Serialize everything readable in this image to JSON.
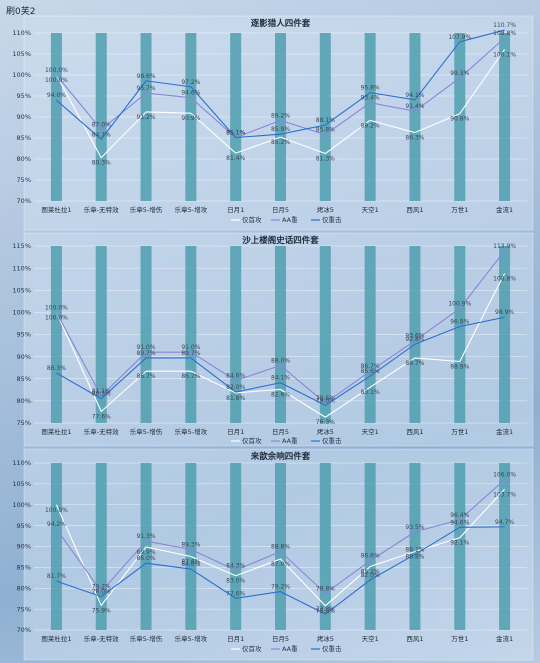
{
  "page_title": "刷0芙2",
  "chart_data": [
    {
      "type": "line",
      "title": "逐影猎人四件套",
      "categories": [
        "图莱杜拉1",
        "乐章-无特效",
        "乐章5-增伤",
        "乐章5-增攻",
        "日月1",
        "日月5",
        "烤冰5",
        "天空1",
        "西风1",
        "万世1",
        "金流1"
      ],
      "ylim": [
        70,
        110
      ],
      "yticks": [
        "70%",
        "75%",
        "80%",
        "85%",
        "90%",
        "95%",
        "100%",
        "105%",
        "110%"
      ],
      "grid": true,
      "legend_position": "bottom",
      "series": [
        {
          "name": "仅首攻",
          "color": "#ffffff",
          "values": [
            100.0,
            80.3,
            91.2,
            90.9,
            81.4,
            85.2,
            81.3,
            89.2,
            86.3,
            90.8,
            106.1
          ],
          "labels": [
            "100.0%",
            "80.3%",
            "91.2%",
            "90.9%",
            "81.4%",
            "85.2%",
            "81.3%",
            "89.2%",
            "86.3%",
            "90.8%",
            "106.1%"
          ]
        },
        {
          "name": "AA重",
          "color": "#8a86d8",
          "values": [
            100.0,
            87.0,
            95.7,
            94.6,
            85.1,
            89.2,
            85.8,
            93.4,
            91.4,
            99.3,
            108.8
          ],
          "labels": [
            "100.0%",
            "87.0%",
            "95.7%",
            "94.6%",
            "85.1%",
            "89.2%",
            "85.8%",
            "93.4%",
            "91.4%",
            "99.3%",
            "108.8%"
          ]
        },
        {
          "name": "仅重击",
          "color": "#2a6fd0",
          "values": [
            94.0,
            84.7,
            98.6,
            97.2,
            85.1,
            85.9,
            88.1,
            95.8,
            94.1,
            107.9,
            110.7
          ],
          "labels": [
            "94.0%",
            "84.7%",
            "98.6%",
            "97.2%",
            "85.1%",
            "85.9%",
            "88.1%",
            "95.8%",
            "94.1%",
            "107.9%",
            "110.7%"
          ]
        }
      ]
    },
    {
      "type": "line",
      "title": "沙上楼阁史话四件套",
      "categories": [
        "图莱杜拉1",
        "乐章-无特效",
        "乐章5-增伤",
        "乐章5-增攻",
        "日月1",
        "日月5",
        "烤冰5",
        "天空1",
        "西风1",
        "万世1",
        "金流1"
      ],
      "ylim": [
        75,
        115
      ],
      "yticks": [
        "75%",
        "80%",
        "85%",
        "90%",
        "95%",
        "100%",
        "105%",
        "110%",
        "115%"
      ],
      "grid": true,
      "legend_position": "bottom",
      "series": [
        {
          "name": "仅首攻",
          "color": "#ffffff",
          "values": [
            100.0,
            77.6,
            86.7,
            86.7,
            81.8,
            82.6,
            76.3,
            83.1,
            89.7,
            88.9,
            108.8
          ],
          "labels": [
            "100.0%",
            "77.6%",
            "86.7%",
            "86.7%",
            "81.8%",
            "82.6%",
            "76.3%",
            "83.1%",
            "89.7%",
            "88.9%",
            "108.8%"
          ]
        },
        {
          "name": "AA重",
          "color": "#8a86d8",
          "values": [
            100.0,
            81.1,
            91.0,
            91.0,
            84.6,
            88.0,
            79.5,
            86.7,
            93.6,
            100.9,
            113.9
          ],
          "labels": [
            "100.0%",
            "81.1%",
            "91.0%",
            "91.0%",
            "84.6%",
            "88.0%",
            "79.5%",
            "86.7%",
            "93.6%",
            "100.9%",
            "113.9%"
          ]
        },
        {
          "name": "仅重击",
          "color": "#2a6fd0",
          "values": [
            86.3,
            80.5,
            89.7,
            89.7,
            82.0,
            84.1,
            79.0,
            85.6,
            92.8,
            96.8,
            98.9
          ],
          "labels": [
            "86.3%",
            "80.5%",
            "89.7%",
            "89.7%",
            "82.0%",
            "84.1%",
            "79.0%",
            "85.6%",
            "92.8%",
            "96.8%",
            "98.9%"
          ]
        }
      ]
    },
    {
      "type": "line",
      "title": "来歆余响四件套",
      "categories": [
        "图莱杜拉1",
        "乐章-无特效",
        "乐章5-增伤",
        "乐章5-增攻",
        "日月1",
        "日月5",
        "烤冰5",
        "天空1",
        "西风1",
        "万世1",
        "金流1"
      ],
      "ylim": [
        70,
        110
      ],
      "yticks": [
        "70%",
        "75%",
        "80%",
        "85%",
        "90%",
        "95%",
        "100%",
        "105%",
        "110%"
      ],
      "grid": true,
      "legend_position": "bottom",
      "series": [
        {
          "name": "仅首攻",
          "color": "#ffffff",
          "values": [
            100.0,
            75.9,
            89.9,
            87.6,
            83.0,
            87.0,
            75.8,
            85.2,
            88.8,
            92.1,
            103.7
          ],
          "labels": [
            "100.0%",
            "75.9%",
            "89.9%",
            "87.6%",
            "83.0%",
            "87.0%",
            "75.8%",
            "85.2%",
            "88.8%",
            "92.1%",
            "103.7%"
          ]
        },
        {
          "name": "AA重",
          "color": "#8a86d8",
          "values": [
            94.2,
            79.2,
            91.3,
            89.3,
            84.3,
            88.8,
            78.8,
            86.6,
            93.5,
            96.4,
            106.0
          ],
          "labels": [
            "94.2%",
            "79.2%",
            "91.3%",
            "89.3%",
            "84.3%",
            "88.8%",
            "78.8%",
            "86.6%",
            "93.5%",
            "96.4%",
            "106.0%"
          ]
        },
        {
          "name": "仅重击",
          "color": "#2a6fd0",
          "values": [
            81.7,
            78.0,
            86.0,
            84.6,
            77.6,
            79.2,
            73.8,
            82.0,
            88.1,
            94.6,
            94.7
          ],
          "labels": [
            "81.7%",
            "78.0%",
            "86.0%",
            "84.6%",
            "77.6%",
            "79.2%",
            "73.8%",
            "82.0%",
            "88.1%",
            "94.6%",
            "94.7%"
          ]
        }
      ]
    }
  ]
}
